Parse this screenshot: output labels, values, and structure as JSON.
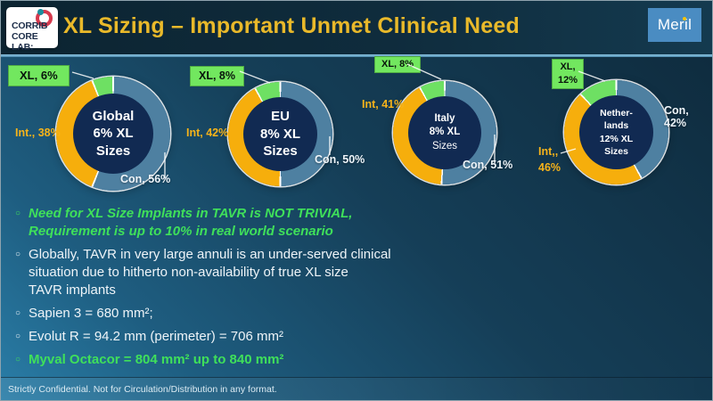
{
  "header": {
    "logo_line1": "CORRIB",
    "logo_line2": "CORE LAB:",
    "title": "XL Sizing – Important Unmet Clinical Need",
    "brand": "Meril"
  },
  "colors": {
    "title_gold": "#e9b92a",
    "xl_green": "#6ee063",
    "int_gold": "#f6ae0c",
    "con_blue": "#4e80a1",
    "center_navy": "#112a52",
    "green_text": "#3fe05a"
  },
  "chart_data": [
    {
      "type": "pie",
      "subtype": "donut",
      "id": "global",
      "center_lines": [
        "Global",
        "6% XL",
        "Sizes"
      ],
      "segments": [
        {
          "name": "Con",
          "value": 56,
          "label": "Con, 56%",
          "color": "#4e80a1"
        },
        {
          "name": "Int",
          "value": 38,
          "label": "Int., 38%",
          "color": "#f6ae0c"
        },
        {
          "name": "XL",
          "value": 6,
          "label": "XL, 6%",
          "color": "#6ee063"
        }
      ]
    },
    {
      "type": "pie",
      "subtype": "donut",
      "id": "eu",
      "center_lines": [
        "EU",
        "8% XL",
        "Sizes"
      ],
      "segments": [
        {
          "name": "Con",
          "value": 50,
          "label": "Con, 50%",
          "color": "#4e80a1"
        },
        {
          "name": "Int",
          "value": 42,
          "label": "Int, 42%",
          "color": "#f6ae0c"
        },
        {
          "name": "XL",
          "value": 8,
          "label": "XL, 8%",
          "color": "#6ee063"
        }
      ]
    },
    {
      "type": "pie",
      "subtype": "donut",
      "id": "italy",
      "center_lines": [
        "Italy",
        "8% XL",
        "Sizes"
      ],
      "segments": [
        {
          "name": "Con",
          "value": 51,
          "label": "Con, 51%",
          "color": "#4e80a1"
        },
        {
          "name": "Int",
          "value": 41,
          "label": "Int, 41%",
          "color": "#f6ae0c"
        },
        {
          "name": "XL",
          "value": 8,
          "label": "XL, 8%",
          "color": "#6ee063"
        }
      ]
    },
    {
      "type": "pie",
      "subtype": "donut",
      "id": "netherlands",
      "center_lines": [
        "Nether-",
        "lands",
        "12% XL",
        "Sizes"
      ],
      "segments": [
        {
          "name": "Con",
          "value": 42,
          "label": "Con, 42%",
          "color": "#4e80a1"
        },
        {
          "name": "Int",
          "value": 46,
          "label": "Int,,\n46%",
          "color": "#f6ae0c"
        },
        {
          "name": "XL",
          "value": 12,
          "label": "XL,\n12%",
          "color": "#6ee063"
        }
      ]
    }
  ],
  "bullets": [
    {
      "style": "green-bold-italic",
      "lines": [
        "Need for XL Size Implants in TAVR is NOT TRIVIAL,",
        "Requirement is up to 10% in real world scenario"
      ]
    },
    {
      "style": "white",
      "lines": [
        "Globally, TAVR in very large annuli is an under-served clinical",
        "situation due to hitherto non-availability of true XL size",
        "TAVR implants"
      ]
    },
    {
      "style": "white",
      "lines": [
        "Sapien 3 = 680 mm²;"
      ]
    },
    {
      "style": "white",
      "lines": [
        "Evolut R = 94.2 mm (perimeter) = 706 mm²"
      ]
    },
    {
      "style": "green-bold",
      "lines": [
        "Myval Octacor = 804 mm² up to 840 mm²"
      ]
    }
  ],
  "footer": {
    "text": "Strictly Confidential. Not for Circulation/Distribution in any format."
  }
}
